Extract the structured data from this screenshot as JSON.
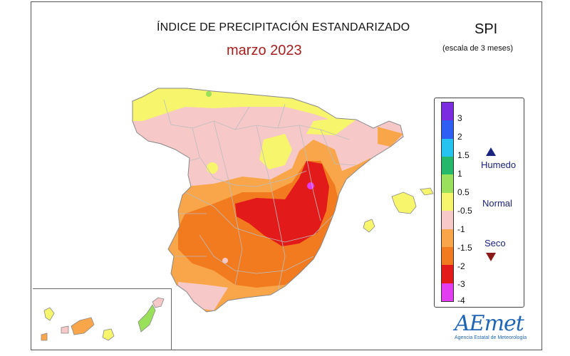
{
  "header": {
    "title": "ÍNDICE DE PRECIPITACIÓN ESTANDARIZADO",
    "period": "marzo 2023",
    "index_name": "SPI",
    "scale_note": "(escala de 3 meses)"
  },
  "legend": {
    "ticks": [
      "3",
      "2",
      "1.5",
      "1",
      "0.5",
      "-0.5",
      "-1",
      "-1.5",
      "-2",
      "-3",
      "-4"
    ],
    "colors": [
      "#7b2be0",
      "#2f5ef5",
      "#25c3f0",
      "#23b86a",
      "#9be05a",
      "#f7f56b",
      "#f6c8c8",
      "#f9a64a",
      "#f27a1f",
      "#e31a1a",
      "#e23df0"
    ],
    "categories": {
      "wet": "Humedo",
      "normal": "Normal",
      "dry": "Seco"
    }
  },
  "logo": {
    "name": "AEmet",
    "subtitle": "Agencia Estatal de Meteorología"
  }
}
